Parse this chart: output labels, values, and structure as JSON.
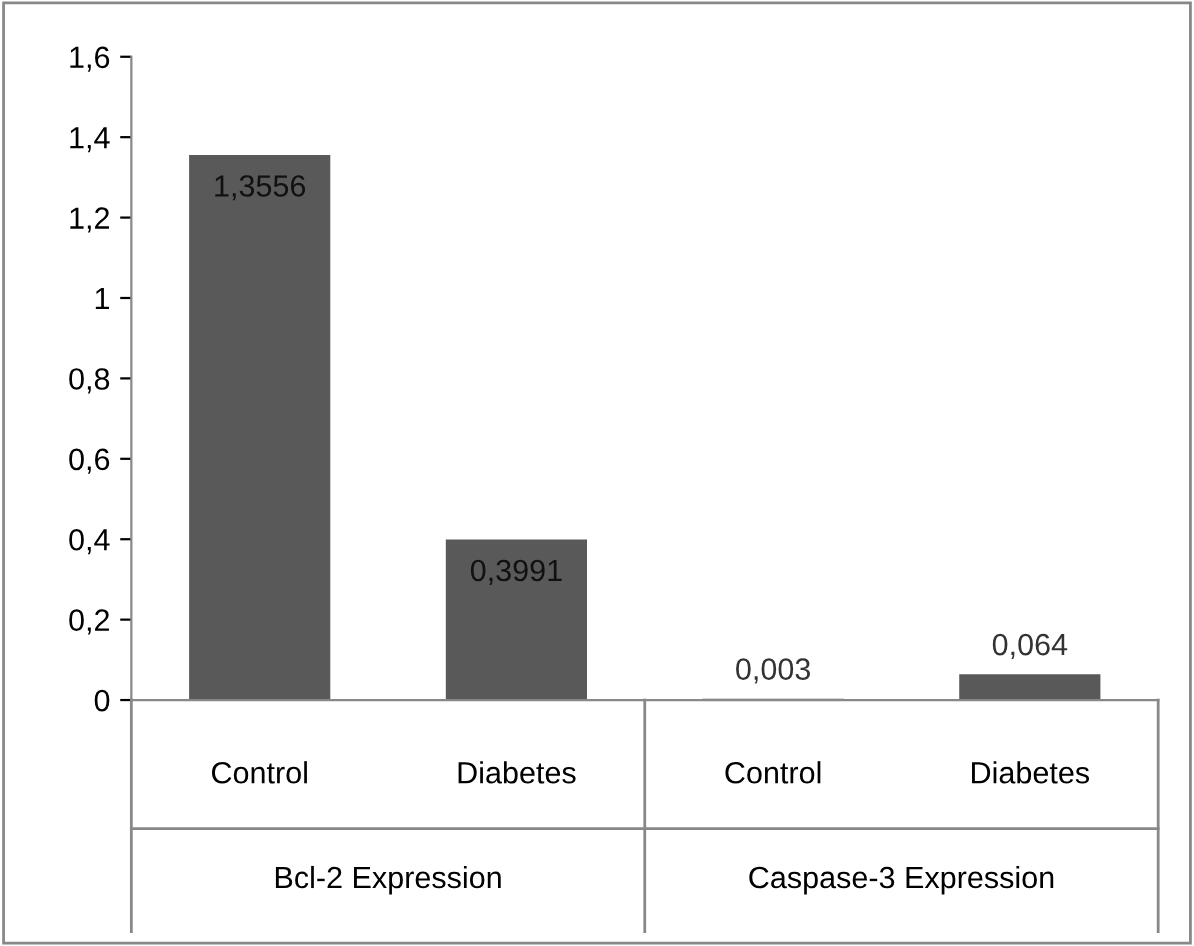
{
  "chart_data": {
    "type": "bar",
    "categories": [
      "Control",
      "Diabetes",
      "Control",
      "Diabetes"
    ],
    "values": [
      1.3556,
      0.3991,
      0.003,
      0.064
    ],
    "value_labels": [
      "1,3556",
      "0,3991",
      "0,003",
      "0,064"
    ],
    "color": "#595959",
    "ylim": [
      0,
      1.6
    ],
    "yticks": [
      0,
      {
        "value": 0.2,
        "label": "0,2"
      },
      {
        "value": 0.4,
        "label": "0,4"
      },
      {
        "value": 0.6,
        "label": "0,6"
      },
      {
        "value": 0.8,
        "label": "0,8"
      },
      1,
      {
        "value": 1.2,
        "label": "1,2"
      },
      {
        "value": 1.4,
        "label": "1,4"
      },
      {
        "value": 1.6,
        "label": "1,6"
      }
    ],
    "grid": false,
    "annotations": [
      "Bcl-2 Expression",
      "Caspase-3 Expression"
    ]
  }
}
